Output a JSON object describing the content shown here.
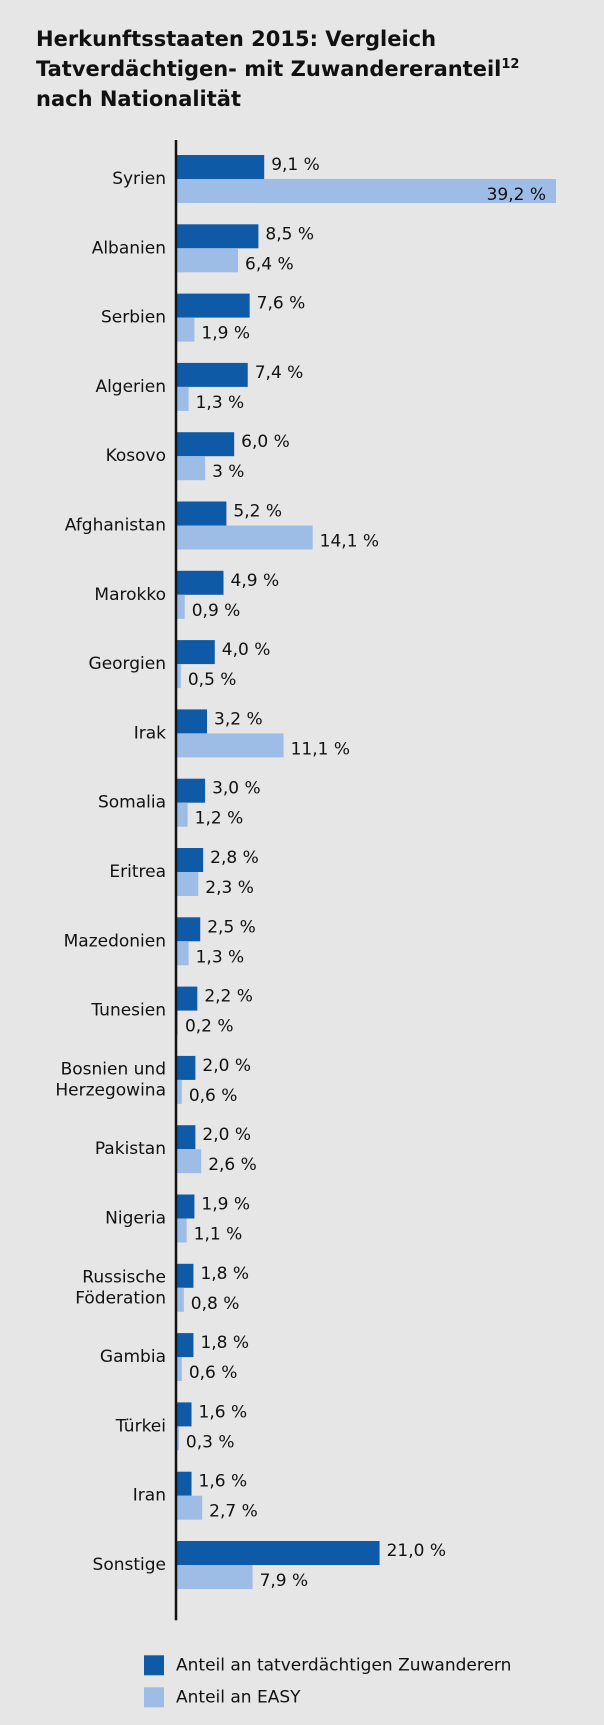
{
  "chart_data": {
    "type": "bar",
    "orientation": "horizontal",
    "title": [
      "Herkunftsstaaten 2015: Vergleich",
      "Tatverdächtigen- mit Zuwandereranteil",
      "nach Nationalität"
    ],
    "title_footnote": "12",
    "categories": [
      "Syrien",
      "Albanien",
      "Serbien",
      "Algerien",
      "Kosovo",
      "Afghanistan",
      "Marokko",
      "Georgien",
      "Irak",
      "Somalia",
      "Eritrea",
      "Mazedonien",
      "Tunesien",
      "Bosnien und Herzegowina",
      "Pakistan",
      "Nigeria",
      "Russische Föderation",
      "Gambia",
      "Türkei",
      "Iran",
      "Sonstige"
    ],
    "series": [
      {
        "name": "Anteil an tatverdächtigen Zuwanderern",
        "color": "#0f5aa6",
        "values": [
          9.1,
          8.5,
          7.6,
          7.4,
          6.0,
          5.2,
          4.9,
          4.0,
          3.2,
          3.0,
          2.8,
          2.5,
          2.2,
          2.0,
          2.0,
          1.9,
          1.8,
          1.8,
          1.6,
          1.6,
          21.0
        ],
        "value_labels": [
          "9,1 %",
          "8,5 %",
          "7,6 %",
          "7,4 %",
          "6,0 %",
          "5,2 %",
          "4,9 %",
          "4,0 %",
          "3,2 %",
          "3,0 %",
          "2,8 %",
          "2,5 %",
          "2,2 %",
          "2,0 %",
          "2,0 %",
          "1,9 %",
          "1,8 %",
          "1,8 %",
          "1,6 %",
          "1,6 %",
          "21,0 %"
        ]
      },
      {
        "name": "Anteil an EASY",
        "color": "#9dbde6",
        "values": [
          39.2,
          6.4,
          1.9,
          1.3,
          3,
          14.1,
          0.9,
          0.5,
          11.1,
          1.2,
          2.3,
          1.3,
          0.2,
          0.6,
          2.6,
          1.1,
          0.8,
          0.6,
          0.3,
          2.7,
          7.9
        ],
        "value_labels": [
          "39,2 %",
          "6,4 %",
          "1,9 %",
          "1,3 %",
          "3 %",
          "14,1 %",
          "0,9 %",
          "0,5 %",
          "11,1 %",
          "1,2 %",
          "2,3 %",
          "1,3 %",
          "0,2 %",
          "0,6 %",
          "2,6 %",
          "1,1 %",
          "0,8 %",
          "0,6 %",
          "0,3 %",
          "2,7 %",
          "7,9 %"
        ]
      }
    ]
  }
}
